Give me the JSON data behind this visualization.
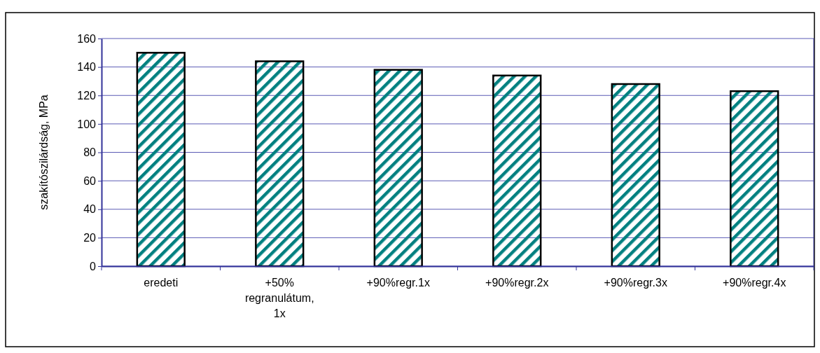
{
  "chart_data": {
    "type": "bar",
    "ylabel": "szakítószilárdság, MPa",
    "categories": [
      "eredeti",
      "+50% regranulátum, 1x",
      "+90%regr.1x",
      "+90%regr.2x",
      "+90%regr.3x",
      "+90%regr.4x"
    ],
    "values": [
      150,
      144,
      138,
      134,
      128,
      123
    ],
    "color": "#008080",
    "ylim": [
      0,
      160
    ],
    "yticks": [
      0,
      20,
      40,
      60,
      80,
      100,
      120,
      140,
      160
    ],
    "grid": "y"
  }
}
